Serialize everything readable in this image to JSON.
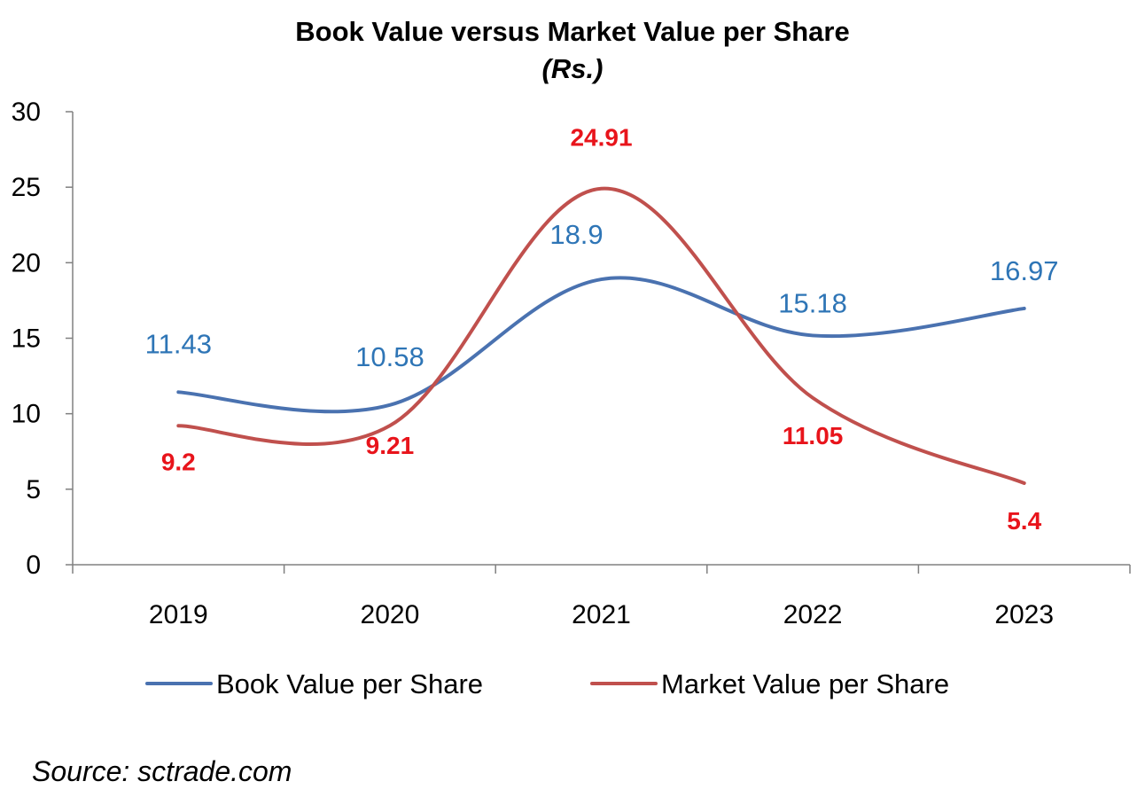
{
  "chart_data": {
    "type": "line",
    "title": "Book Value versus Market Value per Share",
    "subtitle": "(Rs.)",
    "categories": [
      "2019",
      "2020",
      "2021",
      "2022",
      "2023"
    ],
    "ylim": [
      0,
      30
    ],
    "yticks": [
      0,
      5,
      10,
      15,
      20,
      25,
      30
    ],
    "grid": false,
    "legend_position": "bottom",
    "smooth": true,
    "series": [
      {
        "name": "Book Value per Share",
        "values": [
          11.43,
          10.58,
          18.9,
          15.18,
          16.97
        ],
        "labels": [
          "11.43",
          "10.58",
          "18.9",
          "15.18",
          "16.97"
        ],
        "color": "#4a72b0",
        "label_color": "#2e75b6"
      },
      {
        "name": "Market Value per Share",
        "values": [
          9.2,
          9.21,
          24.91,
          11.05,
          5.4
        ],
        "labels": [
          "9.2",
          "9.21",
          "24.91",
          "11.05",
          "5.4"
        ],
        "color": "#c0504d",
        "label_color": "#e8141b"
      }
    ]
  },
  "source_text": "Source: sctrade.com"
}
